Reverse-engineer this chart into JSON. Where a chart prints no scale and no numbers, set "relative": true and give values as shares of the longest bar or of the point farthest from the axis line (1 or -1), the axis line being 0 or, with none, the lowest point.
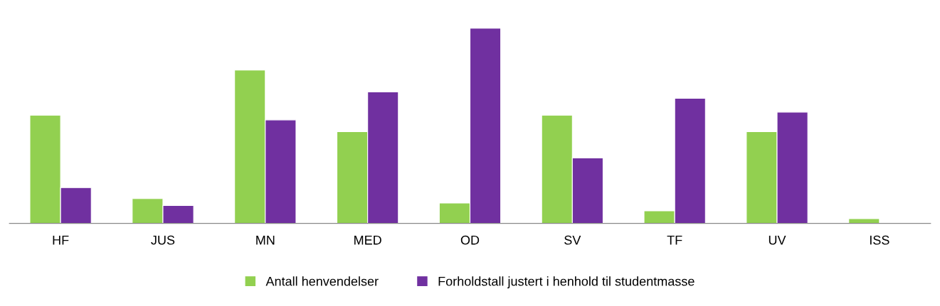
{
  "chart_data": {
    "type": "bar",
    "relative": true,
    "categories": [
      "HF",
      "JUS",
      "MN",
      "MED",
      "OD",
      "SV",
      "TF",
      "UV",
      "ISS"
    ],
    "series": [
      {
        "name": "Antall henvendelser",
        "color": "#92d050",
        "values": [
          0.554,
          0.127,
          0.785,
          0.47,
          0.104,
          0.554,
          0.064,
          0.47,
          0.024
        ]
      },
      {
        "name": "Forholdstall justert i henhold til studentmasse",
        "color": "#7030a0",
        "values": [
          0.183,
          0.092,
          0.53,
          0.673,
          1,
          0.335,
          0.641,
          0.57,
          null
        ]
      }
    ],
    "legend": "bottom",
    "grid": false
  }
}
